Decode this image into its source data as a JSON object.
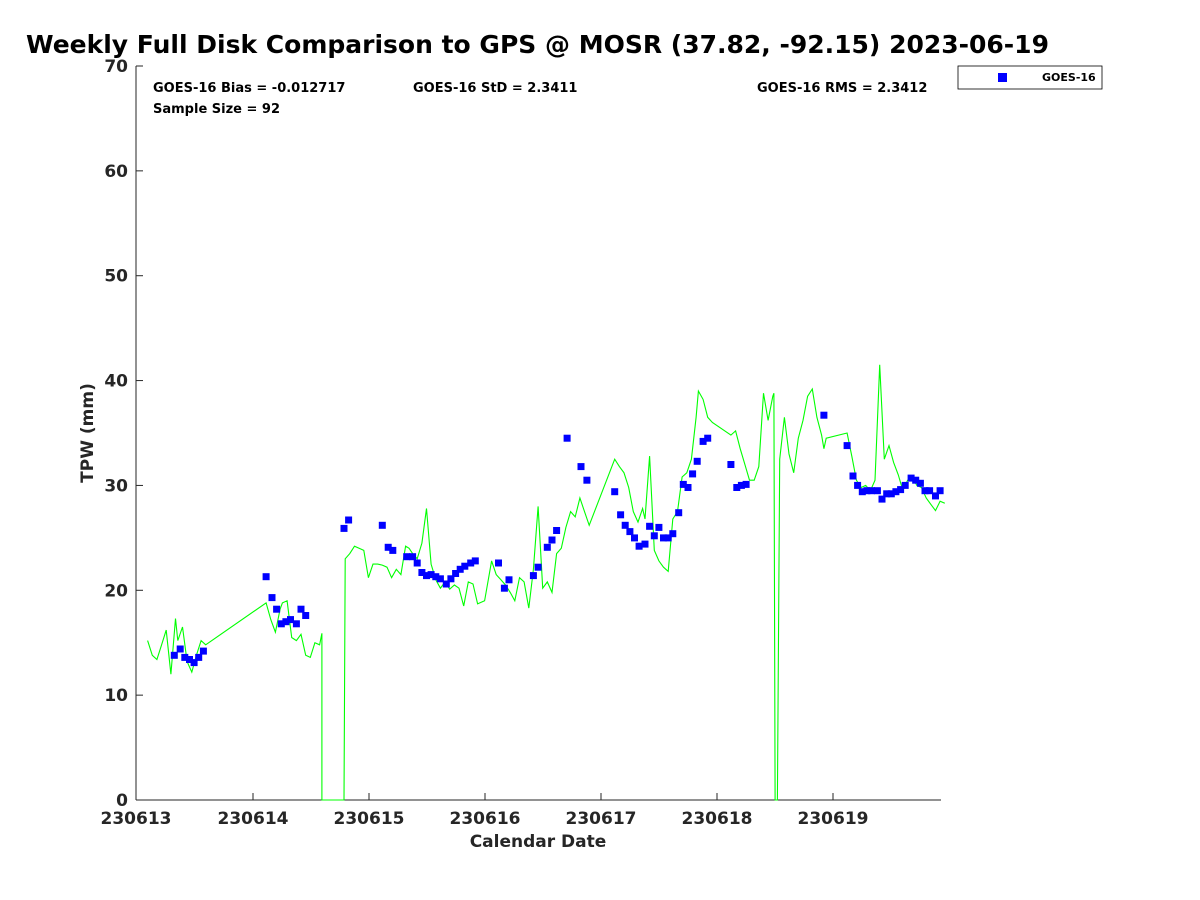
{
  "chart_data": {
    "type": "scatter",
    "title": "Weekly Full Disk Comparison to GPS @ MOSR (37.82, -92.15) 2023-06-19",
    "xlabel": "Calendar Date",
    "ylabel": "TPW (mm)",
    "xlim": [
      230613,
      230619.9
    ],
    "ylim": [
      0,
      70
    ],
    "x_tick_labels": [
      "230613",
      "230614",
      "230615",
      "230616",
      "230617",
      "230618",
      "230619"
    ],
    "y_ticks": [
      0,
      10,
      20,
      30,
      40,
      50,
      60,
      70
    ],
    "stats": {
      "bias": "GOES-16 Bias = -0.012717",
      "std": "GOES-16 StD = 2.3411",
      "rms": "GOES-16 RMS = 2.3412",
      "sample": "Sample Size = 92"
    },
    "legend": {
      "label": "GOES-16",
      "position": "top-right, outside plot"
    },
    "colors": {
      "goes": "#0000ff",
      "gps": "#00ff00"
    },
    "series": [
      {
        "name": "GOES-16",
        "marker": "square",
        "color": "#0000ff",
        "x": [
          613.33,
          613.38,
          613.42,
          613.46,
          613.5,
          613.54,
          613.58,
          614.12,
          614.17,
          614.21,
          614.25,
          614.29,
          614.33,
          614.38,
          614.42,
          614.46,
          614.79,
          614.83,
          615.12,
          615.17,
          615.21,
          615.33,
          615.38,
          615.42,
          615.46,
          615.5,
          615.54,
          615.58,
          615.62,
          615.67,
          615.71,
          615.75,
          615.79,
          615.83,
          615.88,
          615.92,
          616.12,
          616.17,
          616.21,
          616.42,
          616.46,
          616.54,
          616.58,
          616.62,
          616.71,
          616.83,
          616.88,
          617.12,
          617.17,
          617.21,
          617.25,
          617.29,
          617.33,
          617.38,
          617.42,
          617.46,
          617.5,
          617.54,
          617.58,
          617.62,
          617.67,
          617.71,
          617.75,
          617.79,
          617.83,
          617.88,
          617.92,
          618.12,
          618.17,
          618.21,
          618.25,
          618.92,
          619.12,
          619.17,
          619.21,
          619.25,
          619.29,
          619.33,
          619.38,
          619.42,
          619.46,
          619.5,
          619.54,
          619.58,
          619.62,
          619.67,
          619.71,
          619.75,
          619.79,
          619.83,
          619.88,
          619.92
        ],
        "y": [
          13.8,
          14.4,
          13.6,
          13.4,
          13.1,
          13.6,
          14.2,
          21.3,
          19.3,
          18.2,
          16.8,
          17,
          17.2,
          16.8,
          18.2,
          17.6,
          25.9,
          26.7,
          26.2,
          24.1,
          23.8,
          23.2,
          23.2,
          22.6,
          21.7,
          21.4,
          21.5,
          21.3,
          21.1,
          20.6,
          21.1,
          21.6,
          22,
          22.3,
          22.6,
          22.8,
          22.6,
          20.2,
          21,
          21.4,
          22.2,
          24.1,
          24.8,
          25.7,
          34.5,
          31.8,
          30.5,
          29.4,
          27.2,
          26.2,
          25.6,
          25,
          24.2,
          24.4,
          26.1,
          25.2,
          26,
          25,
          25,
          25.4,
          27.4,
          30.1,
          29.8,
          31.1,
          32.3,
          34.2,
          34.5,
          32,
          29.8,
          30,
          30.1,
          36.7,
          33.8,
          30.9,
          30,
          29.4,
          29.5,
          29.5,
          29.5,
          28.7,
          29.2,
          29.2,
          29.4,
          29.6,
          30,
          30.7,
          30.5,
          30.2,
          29.5,
          29.5,
          29,
          29.5
        ]
      },
      {
        "name": "GPS",
        "marker": "line",
        "color": "#00ff00",
        "x": [
          613.1,
          613.14,
          613.18,
          613.22,
          613.26,
          613.3,
          613.34,
          613.36,
          613.4,
          613.44,
          613.48,
          613.52,
          613.56,
          613.6,
          614.12,
          614.16,
          614.2,
          614.24,
          614.26,
          614.3,
          614.34,
          614.38,
          614.42,
          614.46,
          614.5,
          614.54,
          614.58,
          614.6,
          614.6,
          614.79,
          614.8,
          614.84,
          614.88,
          614.92,
          614.96,
          615.0,
          615.04,
          615.08,
          615.12,
          615.16,
          615.2,
          615.24,
          615.28,
          615.32,
          615.35,
          615.38,
          615.42,
          615.46,
          615.5,
          615.54,
          615.58,
          615.62,
          615.66,
          615.7,
          615.74,
          615.78,
          615.82,
          615.86,
          615.9,
          615.94,
          616.0,
          616.06,
          616.1,
          616.14,
          616.18,
          616.22,
          616.26,
          616.3,
          616.34,
          616.38,
          616.42,
          616.46,
          616.5,
          616.54,
          616.58,
          616.62,
          616.66,
          616.7,
          616.74,
          616.78,
          616.82,
          616.86,
          616.9,
          617.12,
          617.16,
          617.2,
          617.24,
          617.28,
          617.32,
          617.36,
          617.38,
          617.42,
          617.46,
          617.5,
          617.54,
          617.58,
          617.62,
          617.66,
          617.7,
          617.74,
          617.78,
          617.82,
          617.84,
          617.88,
          617.92,
          617.96,
          618.12,
          618.16,
          618.2,
          618.24,
          618.28,
          618.32,
          618.36,
          618.4,
          618.44,
          618.48,
          618.49,
          618.5,
          618.51,
          618.52,
          618.54,
          618.58,
          618.62,
          618.66,
          618.7,
          618.74,
          618.78,
          618.82,
          618.86,
          618.9,
          618.92,
          618.94,
          619.12,
          619.16,
          619.2,
          619.24,
          619.28,
          619.32,
          619.36,
          619.4,
          619.44,
          619.48,
          619.52,
          619.56,
          619.6,
          619.64,
          619.68,
          619.72,
          619.76,
          619.8,
          619.84,
          619.88,
          619.92,
          619.96
        ],
        "y": [
          15.2,
          13.8,
          13.4,
          14.8,
          16.2,
          12,
          17.3,
          15.2,
          16.5,
          13.2,
          12.2,
          13.8,
          15.2,
          14.8,
          18.8,
          17.2,
          16,
          18.2,
          18.8,
          19,
          15.5,
          15.2,
          15.8,
          13.8,
          13.6,
          15,
          14.8,
          15.9,
          0,
          0,
          23,
          23.5,
          24.2,
          24,
          23.8,
          21.2,
          22.5,
          22.5,
          22.4,
          22.2,
          21.2,
          22,
          21.5,
          24.2,
          24,
          23.5,
          23,
          24.5,
          27.8,
          22.5,
          21,
          20.2,
          20.8,
          20.1,
          20.5,
          20.2,
          18.5,
          20.8,
          20.6,
          18.7,
          19,
          22.8,
          21.5,
          21,
          20.5,
          19.8,
          19,
          21.2,
          20.8,
          18.3,
          22,
          28,
          20.2,
          20.8,
          19.8,
          23.5,
          24,
          26,
          27.5,
          27,
          28.8,
          27.5,
          26.2,
          32.5,
          31.8,
          31.2,
          29.8,
          27.5,
          26.5,
          27.8,
          26.8,
          32.8,
          23.8,
          22.8,
          22.2,
          21.8,
          26.8,
          27.5,
          30.8,
          31.2,
          32.5,
          36.5,
          39,
          38.2,
          36.5,
          36,
          34.8,
          35.2,
          33.5,
          32,
          30.5,
          30.5,
          31.8,
          38.8,
          36.2,
          38.5,
          38.8,
          0,
          0,
          0,
          32.5,
          36.5,
          33,
          31.2,
          34.5,
          36.2,
          38.5,
          39.2,
          36.5,
          34.8,
          33.5,
          34.5,
          35,
          32.8,
          30.5,
          29.8,
          30,
          29.5,
          30.5,
          41.5,
          32.5,
          33.8,
          32.2,
          31,
          29.5,
          30.5,
          30.8,
          30,
          29.8,
          28.8,
          28.2,
          27.6,
          28.5,
          28.3
        ]
      }
    ]
  }
}
